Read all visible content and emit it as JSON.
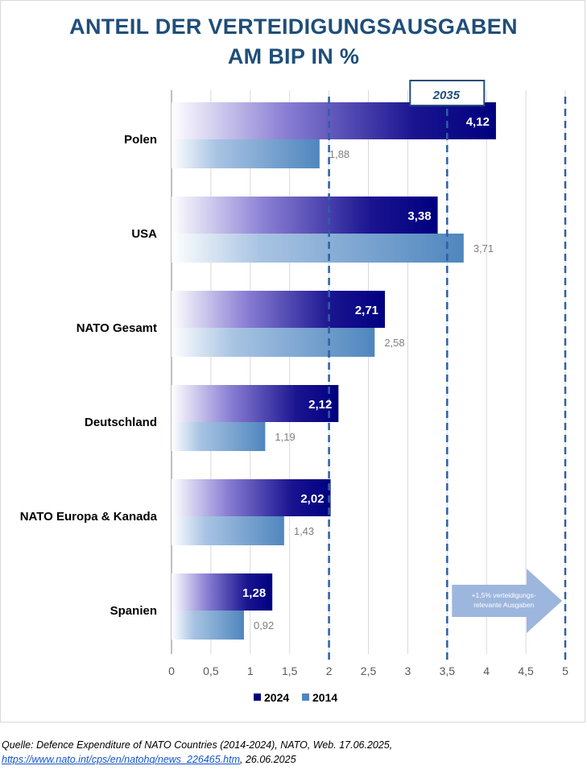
{
  "chart_data": {
    "type": "bar",
    "orientation": "horizontal",
    "title_line1": "ANTEIL DER VERTEIDIGUNGSAUSGABEN",
    "title_line2": "AM BIP IN %",
    "categories": [
      "Polen",
      "USA",
      "NATO Gesamt",
      "Deutschland",
      "NATO Europa & Kanada",
      "Spanien"
    ],
    "series": [
      {
        "name": "2024",
        "color": "#00007f",
        "values": [
          4.12,
          3.38,
          2.71,
          2.12,
          2.02,
          1.28
        ],
        "labels": [
          "4,12",
          "3,38",
          "2,71",
          "2,12",
          "2,02",
          "1,28"
        ]
      },
      {
        "name": "2014",
        "color": "#4f86be",
        "values": [
          1.88,
          3.71,
          2.58,
          1.19,
          1.43,
          0.92
        ],
        "labels": [
          "1,88",
          "3,71",
          "2,58",
          "1,19",
          "1,43",
          "0,92"
        ]
      }
    ],
    "xlim": [
      0,
      5
    ],
    "xticks": [
      0,
      0.5,
      1,
      1.5,
      2,
      2.5,
      3,
      3.5,
      4,
      4.5,
      5
    ],
    "xtick_labels": [
      "0",
      "0,5",
      "1",
      "1,5",
      "2",
      "2,5",
      "3",
      "3,5",
      "4",
      "4,5",
      "5"
    ],
    "reference_lines": [
      2,
      3.5,
      5
    ],
    "annotation_box": {
      "text": "2035",
      "at": 3.5
    },
    "arrow_annotation": {
      "line1": "+1,5% verteidigungs-",
      "line2": "relevante Ausgaben",
      "from": 3.5,
      "to": 5
    },
    "legend_position": "bottom",
    "grid": true
  },
  "source": {
    "line1": "Quelle: Defence Expenditure of NATO Countries (2014-2024), NATO, Web. 17.06.2025,",
    "link_text": "https://www.nato.int/cps/en/natohq/news_226465.htm",
    "line2_suffix": ", 26.06.2025"
  }
}
